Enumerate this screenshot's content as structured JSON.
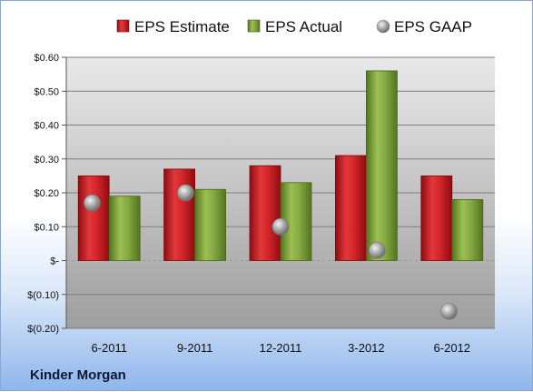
{
  "company": "Kinder Morgan",
  "chart_data": {
    "type": "bar",
    "categories": [
      "6-2011",
      "9-2011",
      "12-2011",
      "3-2012",
      "6-2012"
    ],
    "series": [
      {
        "name": "EPS Estimate",
        "kind": "bar",
        "color": "#cc1e22",
        "values": [
          0.25,
          0.27,
          0.28,
          0.31,
          0.25
        ]
      },
      {
        "name": "EPS Actual",
        "kind": "bar",
        "color": "#7ea33a",
        "values": [
          0.19,
          0.21,
          0.23,
          0.56,
          0.18
        ]
      },
      {
        "name": "EPS GAAP",
        "kind": "scatter",
        "color": "#a9a9a9",
        "values": [
          0.17,
          0.2,
          0.1,
          0.03,
          -0.15
        ]
      }
    ],
    "ylim": [
      -0.2,
      0.6
    ],
    "yticks": [
      0.6,
      0.5,
      0.4,
      0.3,
      0.2,
      0.1,
      0,
      -0.1,
      -0.2
    ],
    "ytick_labels": [
      "$0.60",
      "$0.50",
      "$0.40",
      "$0.30",
      "$0.20",
      "$0.10",
      "$-",
      "$(0.10)",
      "$(0.20)"
    ],
    "grid": true,
    "legend_position": "top"
  }
}
